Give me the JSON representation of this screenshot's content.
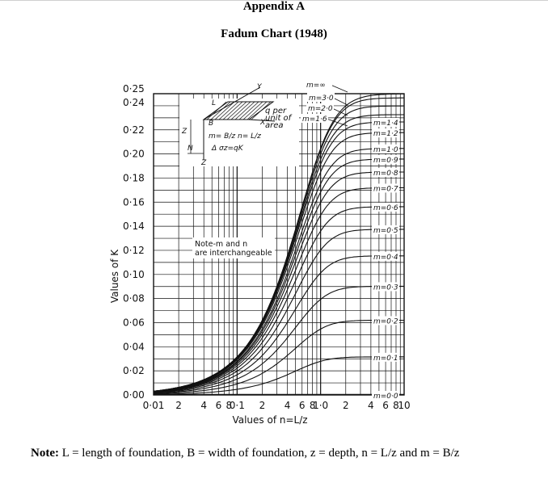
{
  "header": {
    "appendix": "Appendix A",
    "title": "Fadum Chart (1948)"
  },
  "note": {
    "label": "Note:",
    "text": " L = length of foundation, B = width of foundation, z = depth, n = L/z and m = B/z"
  },
  "chart_data": {
    "type": "line",
    "title": "",
    "ylabel": "Values of K",
    "xlabel": "Values of n=L/z",
    "xscale": "log",
    "xlim": [
      0.01,
      10
    ],
    "ylim": [
      0,
      0.25
    ],
    "grid": true,
    "x_tick_labels": [
      "0·01",
      "2",
      "4",
      "6",
      "8",
      "0·1",
      "2",
      "4",
      "6",
      "8",
      "1·0",
      "2",
      "4",
      "6",
      "8",
      "10"
    ],
    "y_tick_labels": [
      "0·00",
      "0·02",
      "0·04",
      "0·06",
      "0·08",
      "0·10",
      "0·12",
      "0·14",
      "0·16",
      "0·18",
      "0·20",
      "0·22",
      "0·24",
      "0·25"
    ],
    "annotations": {
      "note": [
        "Note-m and n",
        "are interchangeable"
      ],
      "inset_load": [
        "q per",
        "unit of",
        "area"
      ],
      "inset_formula_m": "m= B/z",
      "inset_formula_n": "n= L/z",
      "inset_formula_sigma": "Δ σz=qK",
      "inset_axes": [
        "Y",
        "X",
        "Z",
        "L",
        "B",
        "N",
        "Z"
      ]
    },
    "series": [
      {
        "name": "m=∞",
        "m": 1000
      },
      {
        "name": "m=3·0",
        "m": 3.0
      },
      {
        "name": "m=2·0",
        "m": 2.0
      },
      {
        "name": "m=1·6",
        "m": 1.6
      },
      {
        "name": "m=1·4",
        "m": 1.4
      },
      {
        "name": "m=1·2",
        "m": 1.2
      },
      {
        "name": "m=1·0",
        "m": 1.0
      },
      {
        "name": "m=0·9",
        "m": 0.9
      },
      {
        "name": "m=0·8",
        "m": 0.8
      },
      {
        "name": "m=0·7",
        "m": 0.7
      },
      {
        "name": "m=0·6",
        "m": 0.6
      },
      {
        "name": "m=0·5",
        "m": 0.5
      },
      {
        "name": "m=0·4",
        "m": 0.4
      },
      {
        "name": "m=0·3",
        "m": 0.3
      },
      {
        "name": "m=0·2",
        "m": 0.2
      },
      {
        "name": "m=0·1",
        "m": 0.1
      },
      {
        "name": "m=0·0",
        "m": 0.0
      }
    ]
  }
}
